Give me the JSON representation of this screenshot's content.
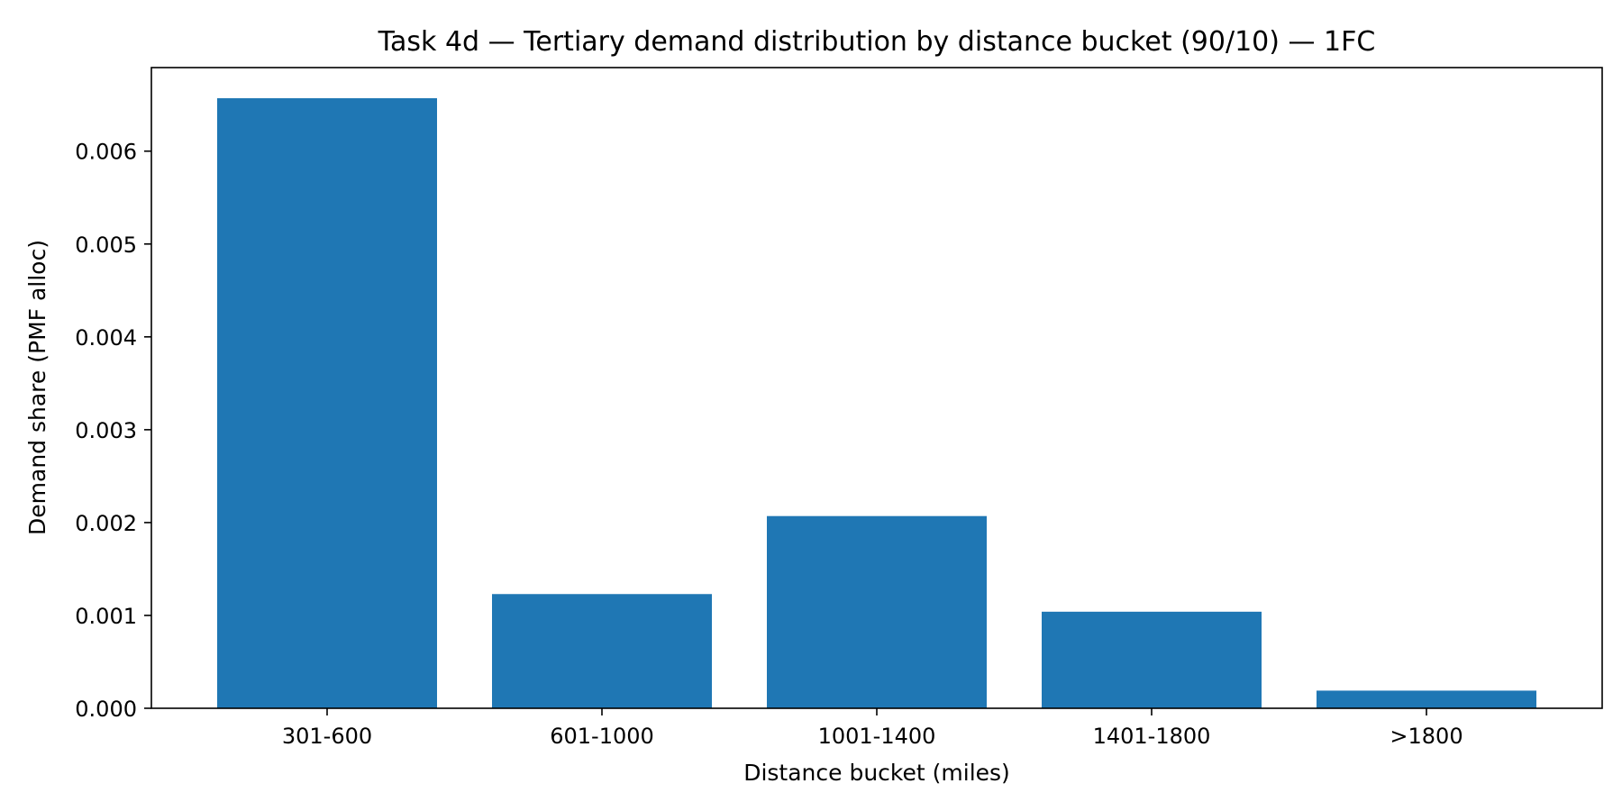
{
  "chart_data": {
    "type": "bar",
    "title": "Task 4d — Tertiary demand distribution by distance bucket (90/10) — 1FC",
    "xlabel": "Distance bucket (miles)",
    "ylabel": "Demand share (PMF alloc)",
    "categories": [
      "301-600",
      "601-1000",
      "1001-1400",
      "1401-1800",
      ">1800"
    ],
    "values": [
      0.00657,
      0.00123,
      0.00207,
      0.00104,
      0.00019
    ],
    "ylim": [
      0,
      0.0069
    ],
    "yticks": [
      0.0,
      0.001,
      0.002,
      0.003,
      0.004,
      0.005,
      0.006
    ],
    "ytick_labels": [
      "0.000",
      "0.001",
      "0.002",
      "0.003",
      "0.004",
      "0.005",
      "0.006"
    ],
    "bar_color": "#1f77b4",
    "grid": false,
    "legend": "none"
  }
}
